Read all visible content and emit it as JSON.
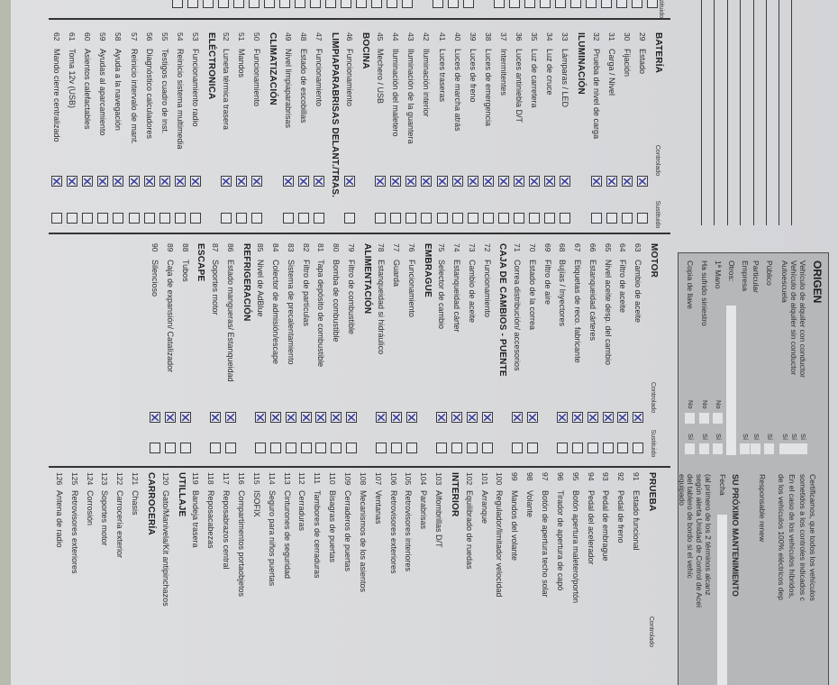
{
  "colors": {
    "paper": "#d8d9db",
    "box_gray": "#b6b7b9",
    "check_mark": "#3a3d9c",
    "background": "#b7bbae"
  },
  "column_a": {
    "sustituido_label": "Sustituido"
  },
  "columns": [
    {
      "controlado_label": "Controlado",
      "sustituido_label": "Sustituido",
      "sections": [
        {
          "title": "BATERÍA",
          "items": [
            {
              "num": "29",
              "label": "Estado",
              "controlado": true
            },
            {
              "num": "30",
              "label": "Fijación",
              "controlado": true
            },
            {
              "num": "31",
              "label": "Carga / Nivel",
              "controlado": true
            },
            {
              "num": "32",
              "label": "Prueba de nivel de carga",
              "controlado": true
            }
          ]
        },
        {
          "title": "ILUMINACIÓN",
          "items": [
            {
              "num": "33",
              "label": "Lámparas / LED",
              "controlado": true
            },
            {
              "num": "34",
              "label": "Luz de cruce",
              "controlado": true
            },
            {
              "num": "35",
              "label": "Luz de carretera",
              "controlado": true
            },
            {
              "num": "36",
              "label": "Luces antiniebla D/T",
              "controlado": true
            },
            {
              "num": "37",
              "label": "Intermitentes",
              "controlado": true
            },
            {
              "num": "38",
              "label": "Luces de emergencia",
              "controlado": true
            },
            {
              "num": "39",
              "label": "Luces de freno",
              "controlado": true
            },
            {
              "num": "40",
              "label": "Luces de marcha atrás",
              "controlado": true
            },
            {
              "num": "41",
              "label": "Luces traseras",
              "controlado": true
            },
            {
              "num": "42",
              "label": "Iluminación interior",
              "controlado": true
            },
            {
              "num": "43",
              "label": "Iluminación de la guantera",
              "controlado": true
            },
            {
              "num": "44",
              "label": "Iluminación del maletero",
              "controlado": true
            },
            {
              "num": "45",
              "label": "Mechero / USB",
              "controlado": true
            }
          ]
        },
        {
          "title": "BOCINA",
          "items": [
            {
              "num": "46",
              "label": "Funcionamiento",
              "controlado": true
            }
          ]
        },
        {
          "title": "LIMPIAPARABRISAS DELANT./TRAS.",
          "items": [
            {
              "num": "47",
              "label": "Funcionamiento",
              "controlado": true
            },
            {
              "num": "48",
              "label": "Estado de escobillas",
              "controlado": true
            },
            {
              "num": "49",
              "label": "Nivel limpiaparabrisas",
              "controlado": true
            }
          ]
        },
        {
          "title": "CLIMATIZACIÓN",
          "items": [
            {
              "num": "50",
              "label": "Funcionamiento",
              "controlado": true
            },
            {
              "num": "51",
              "label": "Mandos",
              "controlado": true
            },
            {
              "num": "52",
              "label": "Luneta térmica trasera",
              "controlado": true
            }
          ]
        },
        {
          "title": "ELÉCTRONICA",
          "items": [
            {
              "num": "53",
              "label": "Funcionamiento radio",
              "controlado": true
            },
            {
              "num": "54",
              "label": "Reinicio sistema multimedia",
              "controlado": true
            },
            {
              "num": "55",
              "label": "Testigos cuadro de inst.",
              "controlado": true
            },
            {
              "num": "56",
              "label": "Diagnóstico calculadores",
              "controlado": true
            },
            {
              "num": "57",
              "label": "Reinicio intervalo de mant.",
              "controlado": true
            },
            {
              "num": "58",
              "label": "Ayuda a la navegación",
              "controlado": true
            },
            {
              "num": "59",
              "label": "Ayudas al aparcamiento",
              "controlado": true
            },
            {
              "num": "60",
              "label": "Asientos calefactables",
              "controlado": true
            },
            {
              "num": "61",
              "label": "Toma 12v (USB)",
              "controlado": true
            },
            {
              "num": "62",
              "label": "Mando cierre centralizado",
              "controlado": true
            }
          ]
        }
      ]
    },
    {
      "controlado_label": "Controlado",
      "sustituido_label": "Sustituido",
      "sections": [
        {
          "title": "MOTOR",
          "items": [
            {
              "num": "63",
              "label": "Cambio de aceite",
              "controlado": true
            },
            {
              "num": "64",
              "label": "Filtro de aceite",
              "controlado": true
            },
            {
              "num": "65",
              "label": "Nivel aceite desp. del cambio",
              "controlado": true
            },
            {
              "num": "66",
              "label": "Estanqueidad cárteres",
              "controlado": true
            },
            {
              "num": "67",
              "label": "Etiquetas de reco. fabricante",
              "controlado": true
            },
            {
              "num": "68",
              "label": "Bujías / Inyectores",
              "controlado": true
            },
            {
              "num": "69",
              "label": "Filtro de aire",
              "controlado": null
            },
            {
              "num": "70",
              "label": "Estado de la correa",
              "controlado": true
            },
            {
              "num": "71",
              "label": "Correa distribución/ accesorios",
              "controlado": true
            }
          ]
        },
        {
          "title": "CAJA DE CAMBIOS - PUENTE",
          "items": [
            {
              "num": "72",
              "label": "Funcionamiento",
              "controlado": true
            },
            {
              "num": "73",
              "label": "Cambio de aceite",
              "controlado": true
            },
            {
              "num": "74",
              "label": "Estanqueidad cárter",
              "controlado": true
            },
            {
              "num": "75",
              "label": "Selector de cambio",
              "controlado": true
            }
          ]
        },
        {
          "title": "EMBRAGUE",
          "items": [
            {
              "num": "76",
              "label": "Funcionamiento",
              "controlado": true
            },
            {
              "num": "77",
              "label": "Guarda",
              "controlado": true
            },
            {
              "num": "78",
              "label": "Estanqueidad si hidráulico",
              "controlado": true
            }
          ]
        },
        {
          "title": "ALIMENTACIÓN",
          "items": [
            {
              "num": "79",
              "label": "Filtro de combustible",
              "controlado": true
            },
            {
              "num": "80",
              "label": "Bomba de combustible",
              "controlado": true
            },
            {
              "num": "81",
              "label": "Tapa depósito de combustible",
              "controlado": true
            },
            {
              "num": "82",
              "label": "Filtro de partículas",
              "controlado": true
            },
            {
              "num": "83",
              "label": "Sistema de precalentamiento",
              "controlado": true
            },
            {
              "num": "84",
              "label": "Colector de admisión/escape",
              "controlado": true
            },
            {
              "num": "85",
              "label": "Nivel de AdBlue",
              "controlado": true
            }
          ]
        },
        {
          "title": "REFRIGERACIÓN",
          "items": [
            {
              "num": "86",
              "label": "Estado mangueras/ Estanqueidad",
              "controlado": true
            },
            {
              "num": "87",
              "label": "Soportes motor",
              "controlado": true
            }
          ]
        },
        {
          "title": "ESCAPE",
          "items": [
            {
              "num": "88",
              "label": "Tubos",
              "controlado": true
            },
            {
              "num": "89",
              "label": "Caja de expansión/ Catalizador",
              "controlado": true
            },
            {
              "num": "90",
              "label": "Silencioso",
              "controlado": true
            }
          ]
        }
      ]
    },
    {
      "controlado_label": "Controlado",
      "sections": [
        {
          "title": "PRUEBA",
          "items": [
            {
              "num": "91",
              "label": "Estado funcional"
            },
            {
              "num": "92",
              "label": "Pedal de freno"
            },
            {
              "num": "93",
              "label": "Pedal de embrague"
            },
            {
              "num": "94",
              "label": "Pedal del acelerador"
            },
            {
              "num": "95",
              "label": "Botón apertura maletero/portón"
            },
            {
              "num": "96",
              "label": "Tirador de apertura de capó"
            },
            {
              "num": "97",
              "label": "Botón de apertura techo solar"
            },
            {
              "num": "98",
              "label": "Volante"
            },
            {
              "num": "99",
              "label": "Mandos del volante"
            },
            {
              "num": "100",
              "label": "Regulador/limitador velocidad"
            },
            {
              "num": "101",
              "label": "Arranque"
            },
            {
              "num": "102",
              "label": "Equilibrado de ruedas"
            }
          ]
        },
        {
          "title": "INTERIOR",
          "items": [
            {
              "num": "103",
              "label": "Alfombrillas D/T"
            },
            {
              "num": "104",
              "label": "Parabrisas"
            },
            {
              "num": "105",
              "label": "Retrovisores interiores"
            },
            {
              "num": "106",
              "label": "Retrovisores exteriores"
            },
            {
              "num": "107",
              "label": "Ventanas"
            },
            {
              "num": "108",
              "label": "Mecanismos de los asientos"
            },
            {
              "num": "109",
              "label": "Cerraderos de puertas"
            },
            {
              "num": "110",
              "label": "Bisagras de puertas"
            },
            {
              "num": "111",
              "label": "Tambores de cerraduras"
            },
            {
              "num": "112",
              "label": "Cerraduras"
            },
            {
              "num": "113",
              "label": "Cinturones de seguridad"
            },
            {
              "num": "114",
              "label": "Seguro para niños puertas"
            },
            {
              "num": "115",
              "label": "ISOFIX"
            },
            {
              "num": "116",
              "label": "Compartimentos portaobjetos"
            },
            {
              "num": "117",
              "label": "Reposabrazos central"
            },
            {
              "num": "118",
              "label": "Reposacabezas"
            },
            {
              "num": "119",
              "label": "Bandeja trasera"
            }
          ]
        },
        {
          "title": "UTILLAJE",
          "items": [
            {
              "num": "120",
              "label": "Gato/Manivela/Kit antipinchazos"
            }
          ]
        },
        {
          "title": "CARROCERÍA",
          "items": [
            {
              "num": "121",
              "label": "Chasis"
            },
            {
              "num": "122",
              "label": "Carrocería exterior"
            },
            {
              "num": "123",
              "label": "Soportes motor"
            },
            {
              "num": "124",
              "label": "Corrosión"
            },
            {
              "num": "125",
              "label": "Retrovisores exteriores"
            },
            {
              "num": "126",
              "label": "Antena de radio"
            }
          ]
        }
      ]
    }
  ],
  "origen": {
    "title": "ORIGEN",
    "yes_label": "Sí",
    "no_label": "No",
    "rows": [
      {
        "label": "Vehículo de alquiler con conductor",
        "type": "si"
      },
      {
        "label": "Vehículo de alquiler sin conductor",
        "type": "si"
      },
      {
        "label": "Autoescuela",
        "type": "si"
      },
      {
        "label": "Público",
        "type": "si"
      },
      {
        "label": "Particular",
        "type": "si"
      },
      {
        "label": "Empresa",
        "type": "si"
      },
      {
        "label": "Otros:",
        "type": "field"
      },
      {
        "label": "1ª Mano",
        "type": "sino"
      },
      {
        "label": "Ha sufrido siniestro",
        "type": "sino"
      },
      {
        "label": "Copia de llave",
        "type": "sino"
      }
    ]
  },
  "certificado": {
    "lines": [
      "Certificamos, que todos los vehículos",
      "sometidos a los controles indicados c",
      "En el caso de los vehículos híbridos,",
      "de los vehículos 100% eléctricos dep"
    ],
    "responsable": "Responsable renew",
    "mantenimiento_title": "SU PRÓXIMO MANTENIMIENTO",
    "fecha_label": "Fecha",
    "note_lines": [
      "(al primero de los 2 términos alcanz",
      "según alerta Unidad de Control de Acei",
      "del tablero de bordo si el vehíc",
      "equipado"
    ]
  }
}
